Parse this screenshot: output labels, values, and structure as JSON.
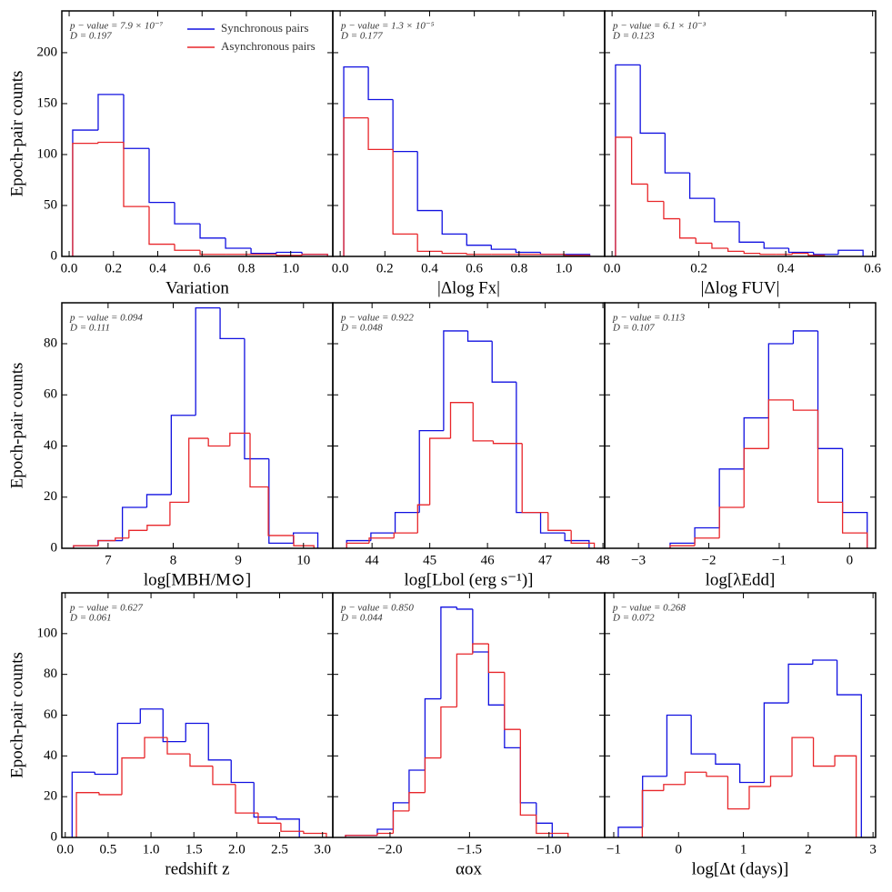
{
  "chart_data": [
    {
      "type": "histogram",
      "xlabel": "Variation",
      "ylabel": "Epoch-pair counts",
      "annotations": [
        "p − value = 7.9 × 10⁻⁷",
        "D = 0.197"
      ],
      "legend": "upper right",
      "xlim": [
        -0.033,
        1.19
      ],
      "xticks": [
        {
          "value": 0,
          "label": "0.0"
        },
        0.2,
        0.4,
        0.6,
        0.8,
        {
          "value": 1,
          "label": "1.0"
        }
      ],
      "ylim": [
        0,
        241
      ],
      "yticks": [
        0,
        50,
        100,
        150,
        200
      ],
      "series": [
        {
          "name": "Synchronous pairs",
          "color": "#1010e0",
          "bins": [
            0.016,
            0.131,
            0.246,
            0.361,
            0.476,
            0.591,
            0.706,
            0.821,
            0.936,
            1.051,
            1.166
          ],
          "values": [
            124,
            159,
            106,
            53,
            32,
            18,
            8,
            3,
            4,
            2
          ]
        },
        {
          "name": "Asynchronous pairs",
          "color": "#e8262a",
          "bins": [
            0.016,
            0.131,
            0.246,
            0.361,
            0.476,
            0.591,
            0.706,
            0.821,
            0.936,
            1.051,
            1.166
          ],
          "values": [
            111,
            112,
            49,
            12,
            6,
            2,
            2,
            2,
            1,
            2
          ]
        }
      ]
    },
    {
      "type": "histogram",
      "xlabel": "|Δlog Fx|",
      "annotations": [
        "p − value = 1.3 × 10⁻⁵",
        "D = 0.177"
      ],
      "xlim": [
        -0.033,
        1.183
      ],
      "xticks": [
        {
          "value": 0,
          "label": "0.0"
        },
        0.2,
        0.4,
        0.6,
        0.8,
        {
          "value": 1,
          "label": "1.0"
        }
      ],
      "ylim": [
        0,
        241
      ],
      "yticks": [
        0,
        50,
        100,
        150,
        200
      ],
      "series": [
        {
          "color": "#1010e0",
          "bins": [
            0.016,
            0.126,
            0.236,
            0.346,
            0.456,
            0.566,
            0.676,
            0.786,
            0.896,
            1.006,
            1.116
          ],
          "values": [
            186,
            154,
            103,
            45,
            22,
            11,
            7,
            4,
            2,
            2
          ]
        },
        {
          "color": "#e8262a",
          "bins": [
            0.016,
            0.126,
            0.236,
            0.346,
            0.456,
            0.566,
            0.676,
            0.786,
            0.896,
            1.006,
            1.116
          ],
          "values": [
            136,
            105,
            22,
            5,
            3,
            2,
            2,
            2,
            2,
            1
          ]
        }
      ]
    },
    {
      "type": "histogram",
      "xlabel": "|Δlog FUV|",
      "annotations": [
        "p − value = 6.1 × 10⁻³",
        "D = 0.123"
      ],
      "xlim": [
        -0.017,
        0.607
      ],
      "xticks": [
        {
          "value": 0,
          "label": "0.0"
        },
        0.2,
        0.4,
        0.6
      ],
      "ylim": [
        0,
        241
      ],
      "yticks": [
        0,
        50,
        100,
        150,
        200
      ],
      "series": [
        {
          "color": "#1010e0",
          "bins": [
            0.008,
            0.065,
            0.122,
            0.179,
            0.236,
            0.293,
            0.35,
            0.407,
            0.464,
            0.521,
            0.578
          ],
          "values": [
            188,
            121,
            82,
            57,
            34,
            14,
            8,
            4,
            2,
            6
          ]
        },
        {
          "color": "#e8262a",
          "bins": [
            0.008,
            0.045,
            0.082,
            0.119,
            0.156,
            0.193,
            0.23,
            0.267,
            0.304,
            0.341,
            0.378,
            0.415,
            0.452,
            0.489
          ],
          "values": [
            117,
            71,
            54,
            37,
            18,
            13,
            8,
            5,
            3,
            2,
            2,
            3,
            1
          ]
        }
      ]
    },
    {
      "type": "histogram",
      "xlabel": "log[MBH/M⊙]",
      "ylabel": "Epoch-pair counts",
      "annotations": [
        "p − value = 0.094",
        "D = 0.111"
      ],
      "xlim": [
        6.29,
        10.45
      ],
      "xticks": [
        7,
        8,
        9,
        10
      ],
      "ylim": [
        0,
        96
      ],
      "yticks": [
        0,
        20,
        40,
        60,
        80
      ],
      "series": [
        {
          "color": "#1010e0",
          "bins": [
            6.47,
            6.845,
            7.22,
            7.595,
            7.97,
            8.345,
            8.72,
            9.095,
            9.47,
            9.845,
            10.22
          ],
          "values": [
            1,
            3,
            16,
            21,
            52,
            94,
            82,
            35,
            2,
            6
          ]
        },
        {
          "color": "#e8262a",
          "bins": [
            6.47,
            6.85,
            7.11,
            7.32,
            7.6,
            7.95,
            8.24,
            8.54,
            8.87,
            9.18,
            9.46,
            9.85,
            10.16
          ],
          "values": [
            1,
            3,
            4,
            7,
            9,
            18,
            43,
            40,
            45,
            24,
            5,
            1
          ]
        }
      ]
    },
    {
      "type": "histogram",
      "xlabel": "log[Lbol (erg s⁻¹)]",
      "annotations": [
        "p − value = 0.922",
        "D = 0.048"
      ],
      "xlim": [
        43.32,
        48.03
      ],
      "xticks": [
        44,
        45,
        46,
        47,
        48
      ],
      "ylim": [
        0,
        96
      ],
      "yticks": [
        0,
        20,
        40,
        60,
        80
      ],
      "series": [
        {
          "color": "#1010e0",
          "bins": [
            43.56,
            43.98,
            44.4,
            44.82,
            45.24,
            45.66,
            46.08,
            46.5,
            46.92,
            47.34,
            47.76
          ],
          "values": [
            3,
            6,
            14,
            46,
            85,
            81,
            65,
            14,
            6,
            3
          ]
        },
        {
          "color": "#e8262a",
          "bins": [
            43.56,
            43.95,
            44.38,
            44.79,
            45.0,
            45.36,
            45.75,
            46.1,
            46.6,
            47.05,
            47.45,
            47.85
          ],
          "values": [
            2,
            4,
            6,
            17,
            43,
            57,
            42,
            41,
            14,
            7,
            2
          ]
        }
      ]
    },
    {
      "type": "histogram",
      "xlabel": "log[λEdd]",
      "annotations": [
        "p − value = 0.113",
        "D = 0.107"
      ],
      "xlim": [
        -3.48,
        0.37
      ],
      "xticks": [
        {
          "value": -3,
          "label": "−3"
        },
        {
          "value": -2,
          "label": "−2"
        },
        {
          "value": -1,
          "label": "−1"
        },
        0
      ],
      "ylim": [
        0,
        96
      ],
      "yticks": [
        0,
        20,
        40,
        60,
        80
      ],
      "series": [
        {
          "color": "#1010e0",
          "bins": [
            -2.55,
            -2.2,
            -1.85,
            -1.5,
            -1.15,
            -0.8,
            -0.45,
            -0.1,
            0.25
          ],
          "values": [
            2,
            8,
            31,
            51,
            80,
            85,
            39,
            14
          ]
        },
        {
          "color": "#e8262a",
          "bins": [
            -2.55,
            -2.2,
            -1.85,
            -1.5,
            -1.15,
            -0.8,
            -0.45,
            -0.1,
            0.25
          ],
          "values": [
            1,
            4,
            16,
            39,
            58,
            54,
            18,
            6
          ]
        }
      ]
    },
    {
      "type": "histogram",
      "xlabel": "redshift  z",
      "ylabel": "Epoch-pair counts",
      "annotations": [
        "p − value = 0.627",
        "D = 0.061"
      ],
      "xlim": [
        -0.04,
        3.12
      ],
      "xticks": [
        {
          "value": 0,
          "label": "0.0"
        },
        0.5,
        {
          "value": 1,
          "label": "1.0"
        },
        1.5,
        {
          "value": 2,
          "label": "2.0"
        },
        2.5,
        {
          "value": 3,
          "label": "3.0"
        }
      ],
      "ylim": [
        0,
        120
      ],
      "yticks": [
        0,
        20,
        40,
        60,
        80,
        100
      ],
      "series": [
        {
          "color": "#1010e0",
          "bins": [
            0.08,
            0.345,
            0.61,
            0.875,
            1.14,
            1.405,
            1.67,
            1.935,
            2.2,
            2.465,
            2.73
          ],
          "values": [
            32,
            31,
            56,
            63,
            47,
            56,
            38,
            27,
            10,
            9
          ]
        },
        {
          "color": "#e8262a",
          "bins": [
            0.13,
            0.395,
            0.66,
            0.925,
            1.19,
            1.455,
            1.72,
            1.985,
            2.25,
            2.515,
            2.78,
            3.045
          ],
          "values": [
            22,
            21,
            39,
            49,
            41,
            35,
            26,
            12,
            7,
            3,
            2
          ]
        }
      ]
    },
    {
      "type": "histogram",
      "xlabel": "αox",
      "annotations": [
        "p − value = 0.850",
        "D = 0.044"
      ],
      "xlim": [
        -2.36,
        -0.65
      ],
      "xticks": [
        {
          "value": -2,
          "label": "−2.0"
        },
        {
          "value": -1.5,
          "label": "−1.5"
        },
        {
          "value": -1,
          "label": "−1.0"
        }
      ],
      "ylim": [
        0,
        120
      ],
      "yticks": [
        0,
        20,
        40,
        60,
        80,
        100
      ],
      "series": [
        {
          "color": "#1010e0",
          "bins": [
            -2.28,
            -2.18,
            -2.08,
            -1.98,
            -1.88,
            -1.78,
            -1.68,
            -1.58,
            -1.48,
            -1.38,
            -1.28,
            -1.18,
            -1.08,
            -0.98
          ],
          "values": [
            1,
            1,
            4,
            17,
            33,
            68,
            113,
            112,
            91,
            65,
            44,
            17,
            7
          ]
        },
        {
          "color": "#e8262a",
          "bins": [
            -2.28,
            -2.18,
            -2.08,
            -1.98,
            -1.88,
            -1.78,
            -1.68,
            -1.58,
            -1.48,
            -1.38,
            -1.28,
            -1.18,
            -1.08,
            -0.98,
            -0.88
          ],
          "values": [
            1,
            1,
            2,
            13,
            22,
            39,
            64,
            90,
            95,
            81,
            53,
            11,
            2,
            2
          ]
        }
      ]
    },
    {
      "type": "histogram",
      "xlabel": "log[Δt (days)]",
      "annotations": [
        "p − value = 0.268",
        "D = 0.072"
      ],
      "xlim": [
        -1.14,
        3.04
      ],
      "xticks": [
        {
          "value": -1,
          "label": "−1"
        },
        0,
        1,
        2,
        3
      ],
      "ylim": [
        0,
        120
      ],
      "yticks": [
        0,
        20,
        40,
        60,
        80,
        100
      ],
      "series": [
        {
          "color": "#1010e0",
          "bins": [
            -0.93,
            -0.555,
            -0.18,
            0.195,
            0.57,
            0.945,
            1.32,
            1.695,
            2.07,
            2.445,
            2.82
          ],
          "values": [
            5,
            30,
            60,
            41,
            36,
            27,
            66,
            85,
            87,
            70
          ]
        },
        {
          "color": "#e8262a",
          "bins": [
            -0.56,
            -0.23,
            0.1,
            0.43,
            0.76,
            1.09,
            1.42,
            1.75,
            2.08,
            2.41,
            2.74
          ],
          "values": [
            23,
            26,
            32,
            30,
            14,
            25,
            30,
            49,
            35,
            40
          ]
        }
      ]
    }
  ]
}
